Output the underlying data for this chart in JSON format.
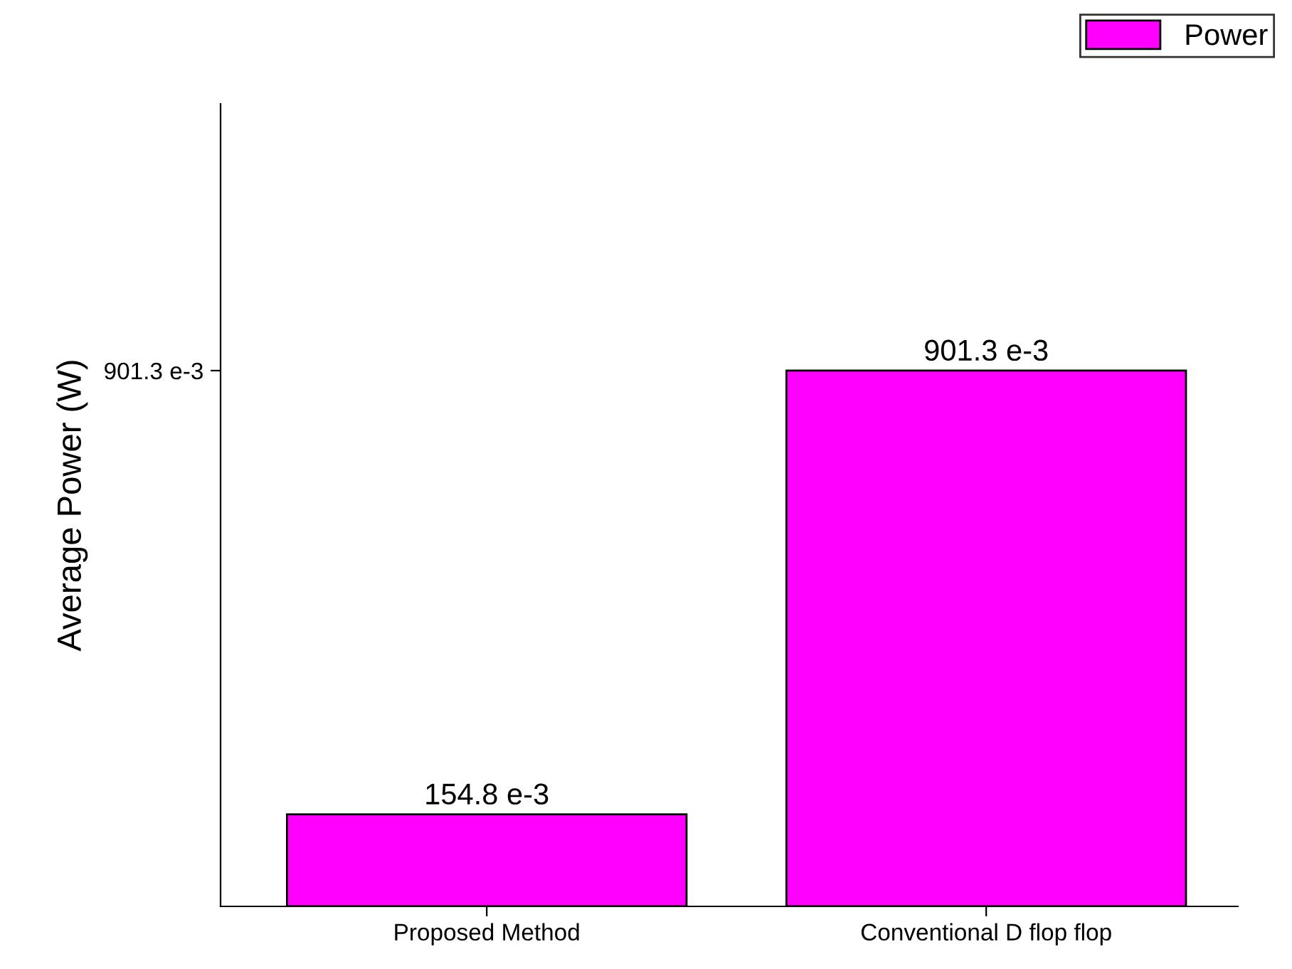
{
  "chart_data": {
    "type": "bar",
    "ylabel": "Average Power (W)",
    "categories": [
      "Proposed Method",
      "Conventional D flop flop"
    ],
    "series": [
      {
        "name": "Power",
        "color": "#ff00ff",
        "values": [
          0.1548,
          0.9013
        ]
      }
    ],
    "value_labels": [
      "154.8 e-3",
      "901.3 e-3"
    ],
    "yticks": [
      {
        "value": 0.9013,
        "label": "901.3 e-3"
      }
    ],
    "ylim": [
      0,
      1.35
    ],
    "legend": "top right",
    "grid": false
  }
}
